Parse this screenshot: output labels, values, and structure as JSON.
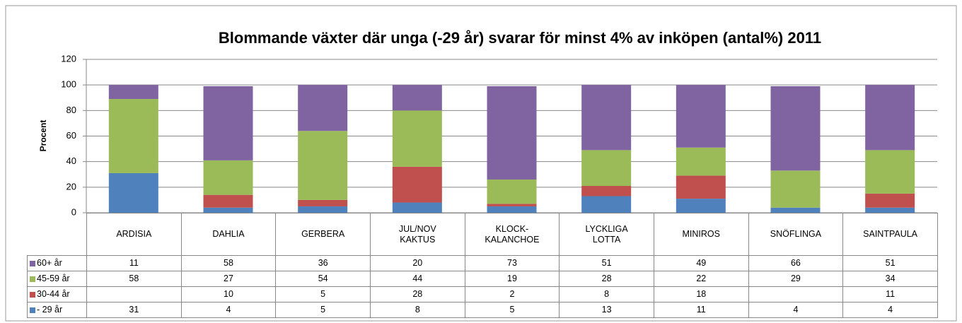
{
  "chart_data": {
    "type": "stacked_bar",
    "title": "Blommande växter där unga (-29 år) svarar för minst 4% av inköpen (antal%) 2011",
    "y_label": "Procent",
    "categories": [
      "ARDISIA",
      "DAHLIA",
      "GERBERA",
      "JUL/NOV\nKAKTUS",
      "KLOCK-\nKALANCHOE",
      "LYCKLIGA\nLOTTA",
      "MINIROS",
      "SNÖFLINGA",
      "SAINTPAULA"
    ],
    "series": [
      {
        "name": "- 29 år",
        "color": "#4f81bd",
        "values": [
          31,
          4,
          5,
          8,
          5,
          13,
          11,
          4,
          4
        ]
      },
      {
        "name": "30-44 år",
        "color": "#c0504d",
        "values": [
          null,
          10,
          5,
          28,
          2,
          8,
          18,
          null,
          11
        ]
      },
      {
        "name": "45-59 år",
        "color": "#9bbb59",
        "values": [
          58,
          27,
          54,
          44,
          19,
          28,
          22,
          29,
          34
        ]
      },
      {
        "name": "60+ år",
        "color": "#8064a2",
        "values": [
          11,
          58,
          36,
          20,
          73,
          51,
          49,
          66,
          51
        ]
      }
    ],
    "ylim": [
      0,
      120
    ],
    "yticks": [
      0,
      20,
      40,
      60,
      80,
      100,
      120
    ],
    "grid": true
  }
}
